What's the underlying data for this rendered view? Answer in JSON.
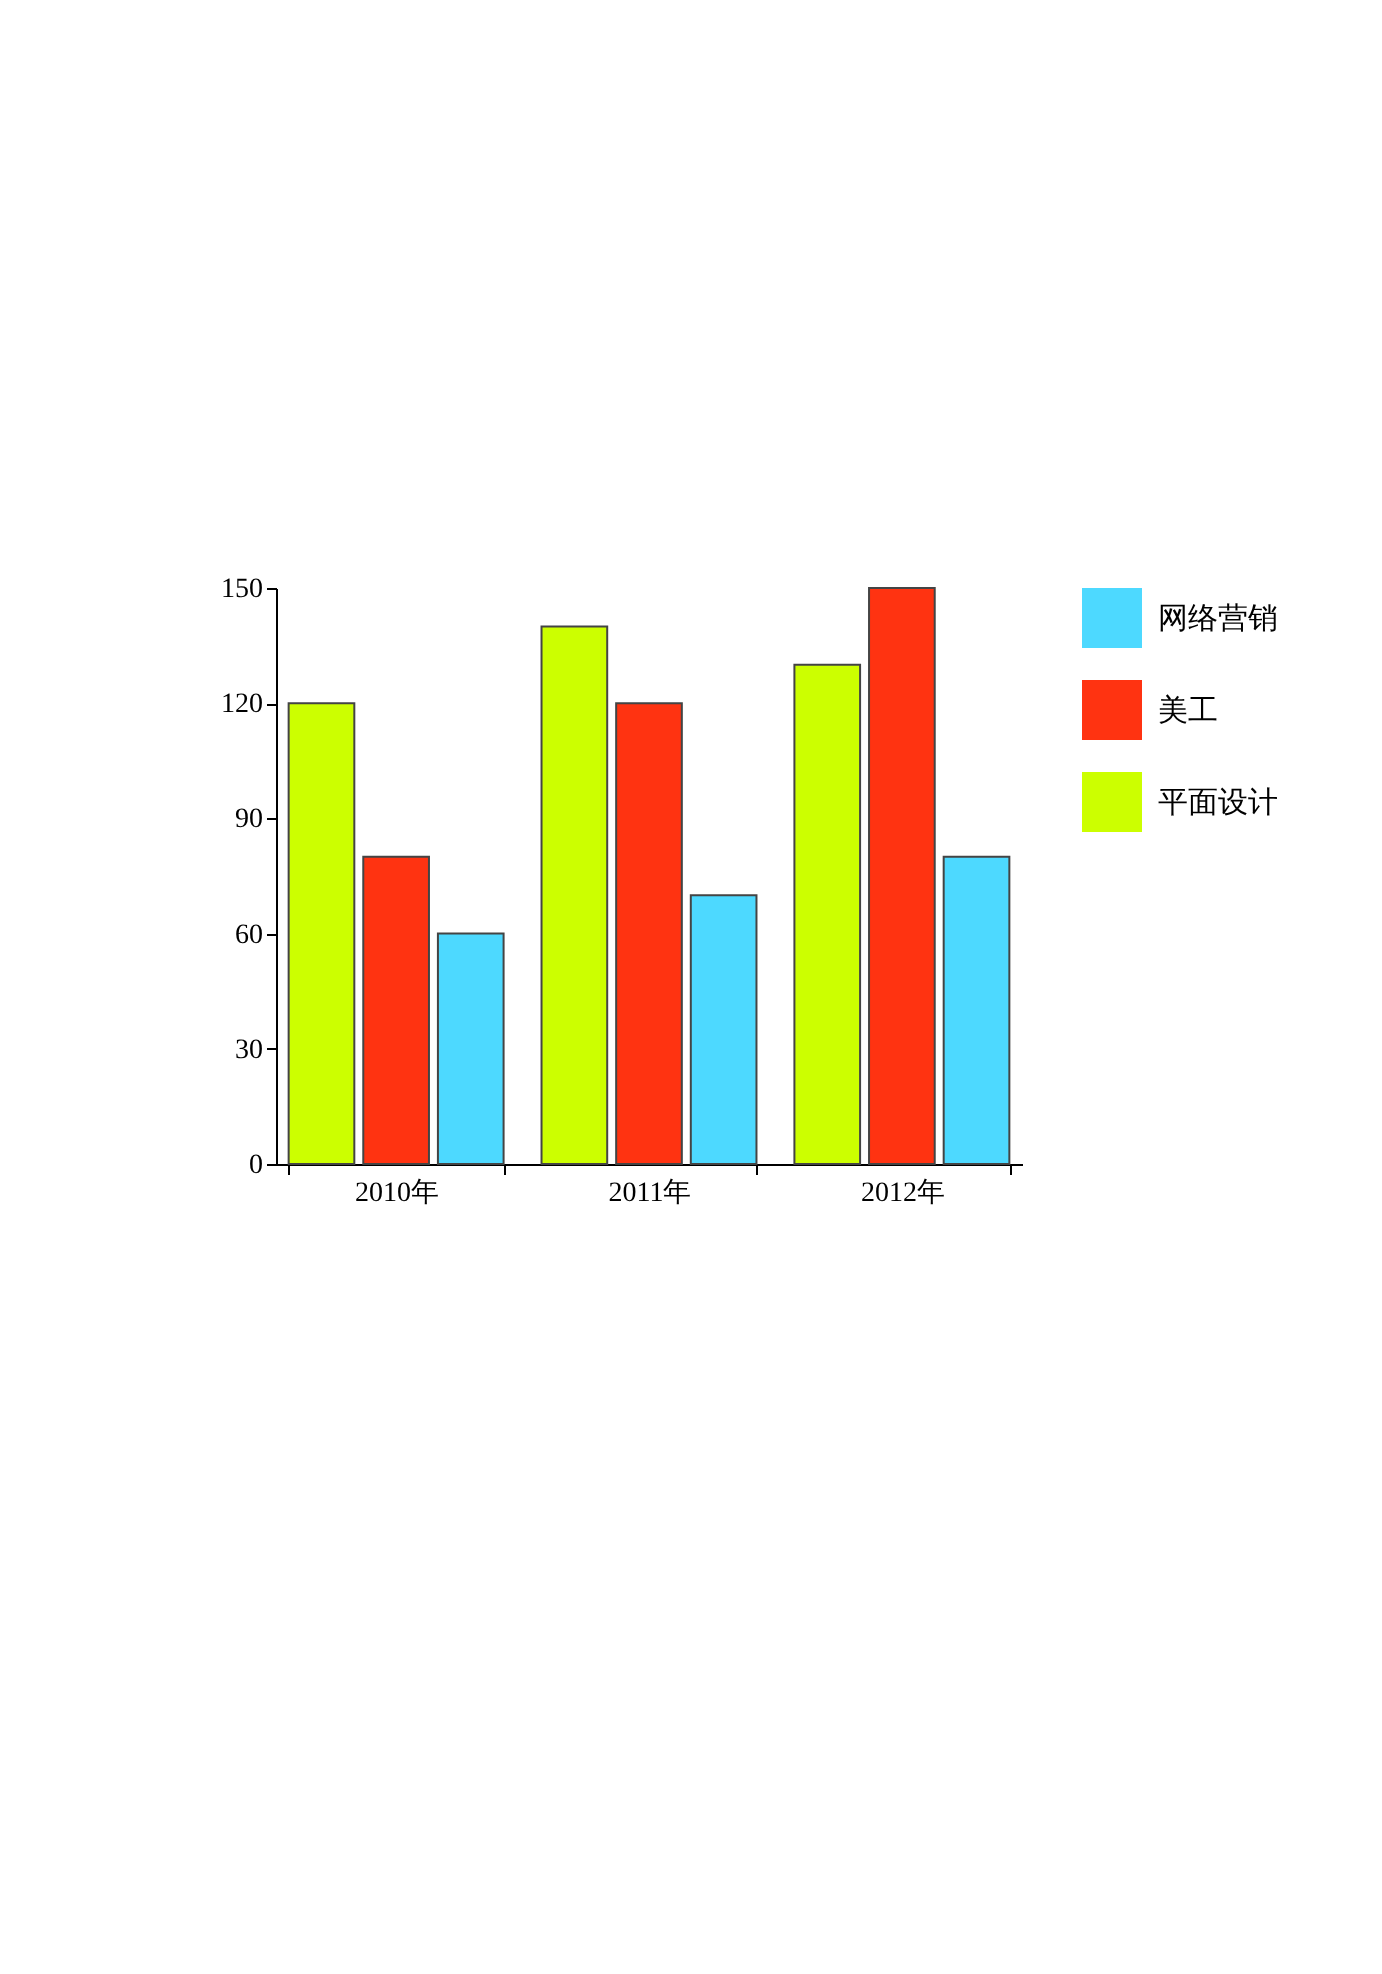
{
  "chart_data": {
    "type": "bar",
    "categories": [
      "2010年",
      "2011年",
      "2012年"
    ],
    "series": [
      {
        "name": "平面设计",
        "color": "#ccff00",
        "values": [
          120,
          140,
          130
        ]
      },
      {
        "name": "美工",
        "color": "#ff3311",
        "values": [
          80,
          120,
          150
        ]
      },
      {
        "name": "网络营销",
        "color": "#4dd9ff",
        "values": [
          60,
          70,
          80
        ]
      }
    ],
    "ylim": [
      0,
      150
    ],
    "yticks": [
      0,
      30,
      60,
      90,
      120,
      150
    ],
    "legend": "top right"
  }
}
